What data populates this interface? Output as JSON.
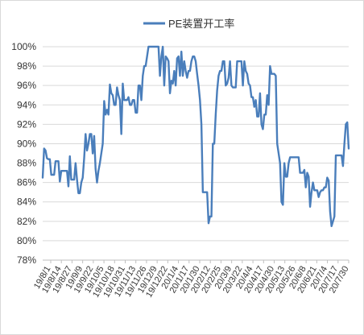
{
  "chart_data": {
    "type": "line",
    "title": "",
    "xlabel": "",
    "ylabel": "",
    "ylim": [
      0.78,
      1.0
    ],
    "y_tick_step": 0.02,
    "y_tick_labels": [
      "78%",
      "80%",
      "82%",
      "84%",
      "86%",
      "88%",
      "90%",
      "92%",
      "94%",
      "96%",
      "98%",
      "100%"
    ],
    "grid": "horizontal",
    "legend_position": "top",
    "x_tick_labels": [
      "19/8/1",
      "19/8/14",
      "19/8/27",
      "19/9/9",
      "19/9/22",
      "19/10/5",
      "19/10/18",
      "19/10/31",
      "19/11/13",
      "19/11/26",
      "19/12/9",
      "19/12/22",
      "20/1/4",
      "20/1/17",
      "20/1/30",
      "20/2/12",
      "20/2/25",
      "20/3/9",
      "20/3/22",
      "20/4/4",
      "20/4/17",
      "20/4/30",
      "20/5/13",
      "20/5/26",
      "20/6/8",
      "20/6/21",
      "20/7/4",
      "20/7/17",
      "20/7/30"
    ],
    "series": [
      {
        "name": "PE装置开工率",
        "color": "#4a7ebb",
        "x_start": "2019-08-01",
        "x_end": "2020-07-31",
        "values": [
          0.865,
          0.895,
          0.893,
          0.885,
          0.884,
          0.884,
          0.868,
          0.868,
          0.868,
          0.882,
          0.882,
          0.882,
          0.861,
          0.872,
          0.872,
          0.872,
          0.872,
          0.872,
          0.856,
          0.887,
          0.863,
          0.863,
          0.863,
          0.88,
          0.863,
          0.849,
          0.849,
          0.86,
          0.865,
          0.885,
          0.91,
          0.893,
          0.9,
          0.91,
          0.91,
          0.89,
          0.908,
          0.874,
          0.86,
          0.872,
          0.88,
          0.89,
          0.9,
          0.944,
          0.93,
          0.935,
          0.93,
          0.961,
          0.952,
          0.95,
          0.94,
          0.94,
          0.958,
          0.95,
          0.945,
          0.91,
          0.962,
          0.945,
          0.945,
          0.945,
          0.948,
          0.94,
          0.94,
          0.945,
          0.945,
          0.932,
          0.932,
          0.96,
          0.96,
          0.945,
          0.97,
          0.98,
          0.98,
          0.99,
          1.0,
          1.0,
          1.0,
          1.0,
          1.0,
          1.0,
          1.0,
          1.0,
          0.97,
          0.99,
          1.0,
          0.96,
          0.99,
          0.988,
          0.985,
          0.952,
          0.965,
          0.962,
          0.975,
          0.96,
          0.988,
          0.99,
          0.97,
          0.995,
          0.97,
          0.985,
          0.975,
          0.968,
          0.975,
          0.975,
          0.985,
          0.99,
          0.99,
          0.985,
          0.972,
          0.96,
          0.945,
          0.92,
          0.85,
          0.85,
          0.85,
          0.85,
          0.818,
          0.825,
          0.825,
          0.9,
          0.9,
          0.93,
          0.955,
          0.97,
          0.975,
          0.975,
          0.985,
          0.985,
          0.96,
          0.962,
          0.968,
          0.985,
          0.96,
          0.958,
          0.958,
          0.958,
          0.985,
          0.985,
          0.985,
          0.985,
          0.96,
          0.985,
          0.975,
          0.972,
          0.962,
          0.96,
          0.948,
          0.948,
          0.938,
          0.945,
          0.928,
          0.928,
          0.952,
          0.92,
          0.915,
          0.93,
          0.93,
          0.95,
          0.94,
          0.98,
          0.972,
          0.972,
          0.972,
          0.97,
          0.9,
          0.89,
          0.88,
          0.84,
          0.837,
          0.88,
          0.866,
          0.866,
          0.88,
          0.886,
          0.886,
          0.886,
          0.886,
          0.886,
          0.886,
          0.886,
          0.87,
          0.87,
          0.87,
          0.873,
          0.855,
          0.87,
          0.866,
          0.835,
          0.85,
          0.86,
          0.852,
          0.852,
          0.852,
          0.845,
          0.85,
          0.852,
          0.852,
          0.855,
          0.855,
          0.865,
          0.862,
          0.83,
          0.815,
          0.82,
          0.825,
          0.888,
          0.888,
          0.888,
          0.888,
          0.888,
          0.877,
          0.9,
          0.92,
          0.922,
          0.895
        ]
      }
    ]
  }
}
